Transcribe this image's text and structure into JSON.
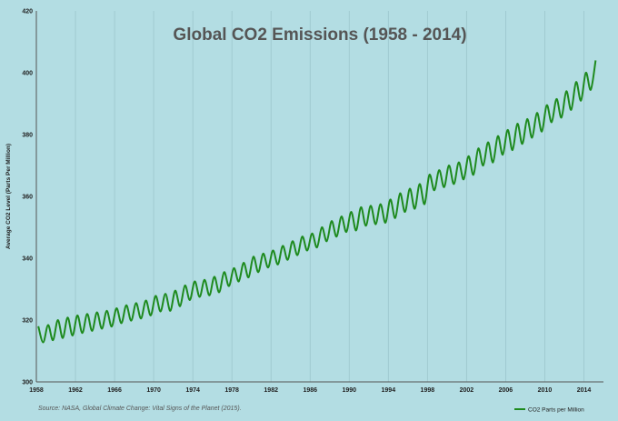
{
  "chart_data": {
    "type": "line",
    "title": "Global CO2 Emissions (1958 - 2014)",
    "xlabel": "",
    "ylabel": "Average CO2 Level (Parts Per Million)",
    "source": "Source: NASA, Global Climate Change: Vital Signs of the Planet (2015).",
    "xlim": [
      1958,
      2016
    ],
    "ylim": [
      300,
      420
    ],
    "x_ticks": [
      "1958",
      "1962",
      "1966",
      "1970",
      "1974",
      "1978",
      "1982",
      "1986",
      "1990",
      "1994",
      "1998",
      "2002",
      "2006",
      "2010",
      "2014"
    ],
    "y_ticks": [
      "300",
      "320",
      "340",
      "360",
      "380",
      "400",
      "420"
    ],
    "grid": "vertical",
    "legend_position": "bottom-right",
    "series": [
      {
        "name": "CO2 Parts per Million",
        "color": "#1e8a1e",
        "x": [
          1958.2,
          1958.7,
          1959.2,
          1959.7,
          1960.2,
          1960.7,
          1961.2,
          1961.7,
          1962.2,
          1962.7,
          1963.2,
          1963.7,
          1964.2,
          1964.7,
          1965.2,
          1965.7,
          1966.2,
          1966.7,
          1967.2,
          1967.7,
          1968.2,
          1968.7,
          1969.2,
          1969.7,
          1970.2,
          1970.7,
          1971.2,
          1971.7,
          1972.2,
          1972.7,
          1973.2,
          1973.7,
          1974.2,
          1974.7,
          1975.2,
          1975.7,
          1976.2,
          1976.7,
          1977.2,
          1977.7,
          1978.2,
          1978.7,
          1979.2,
          1979.7,
          1980.2,
          1980.7,
          1981.2,
          1981.7,
          1982.2,
          1982.7,
          1983.2,
          1983.7,
          1984.2,
          1984.7,
          1985.2,
          1985.7,
          1986.2,
          1986.7,
          1987.2,
          1987.7,
          1988.2,
          1988.7,
          1989.2,
          1989.7,
          1990.2,
          1990.7,
          1991.2,
          1991.7,
          1992.2,
          1992.7,
          1993.2,
          1993.7,
          1994.2,
          1994.7,
          1995.2,
          1995.7,
          1996.2,
          1996.7,
          1997.2,
          1997.7,
          1998.2,
          1998.7,
          1999.2,
          1999.7,
          2000.2,
          2000.7,
          2001.2,
          2001.7,
          2002.2,
          2002.7,
          2003.2,
          2003.7,
          2004.2,
          2004.7,
          2005.2,
          2005.7,
          2006.2,
          2006.7,
          2007.2,
          2007.7,
          2008.2,
          2008.7,
          2009.2,
          2009.7,
          2010.2,
          2010.7,
          2011.2,
          2011.7,
          2012.2,
          2012.7,
          2013.2,
          2013.7,
          2014.2,
          2014.7,
          2015.2
        ],
        "values": [
          318.0,
          312.8,
          318.4,
          313.5,
          320.0,
          314.2,
          320.8,
          315.0,
          321.5,
          315.8,
          322.0,
          316.5,
          322.5,
          317.2,
          323.0,
          317.9,
          323.8,
          319.0,
          324.8,
          319.8,
          325.5,
          320.5,
          326.3,
          321.5,
          327.8,
          322.8,
          328.5,
          323.0,
          329.5,
          324.5,
          331.2,
          326.5,
          332.5,
          327.5,
          333.0,
          328.0,
          334.0,
          329.0,
          335.5,
          331.0,
          336.8,
          332.5,
          338.5,
          333.8,
          340.5,
          335.5,
          341.5,
          337.0,
          342.5,
          338.0,
          344.0,
          339.5,
          345.5,
          341.0,
          347.0,
          342.5,
          348.0,
          343.5,
          350.0,
          345.5,
          352.0,
          347.0,
          353.5,
          348.5,
          355.0,
          349.0,
          356.5,
          350.5,
          357.0,
          351.0,
          357.5,
          351.5,
          359.0,
          353.0,
          361.0,
          355.0,
          362.5,
          356.0,
          364.0,
          357.5,
          367.0,
          362.0,
          368.5,
          363.0,
          370.0,
          364.0,
          371.0,
          365.5,
          373.0,
          367.0,
          375.5,
          370.0,
          377.5,
          371.0,
          379.5,
          373.5,
          381.5,
          375.0,
          383.5,
          377.0,
          385.0,
          379.0,
          387.0,
          381.0,
          389.5,
          384.0,
          391.5,
          385.5,
          394.0,
          388.0,
          397.0,
          391.0,
          400.0,
          394.5,
          404.0
        ]
      }
    ]
  }
}
